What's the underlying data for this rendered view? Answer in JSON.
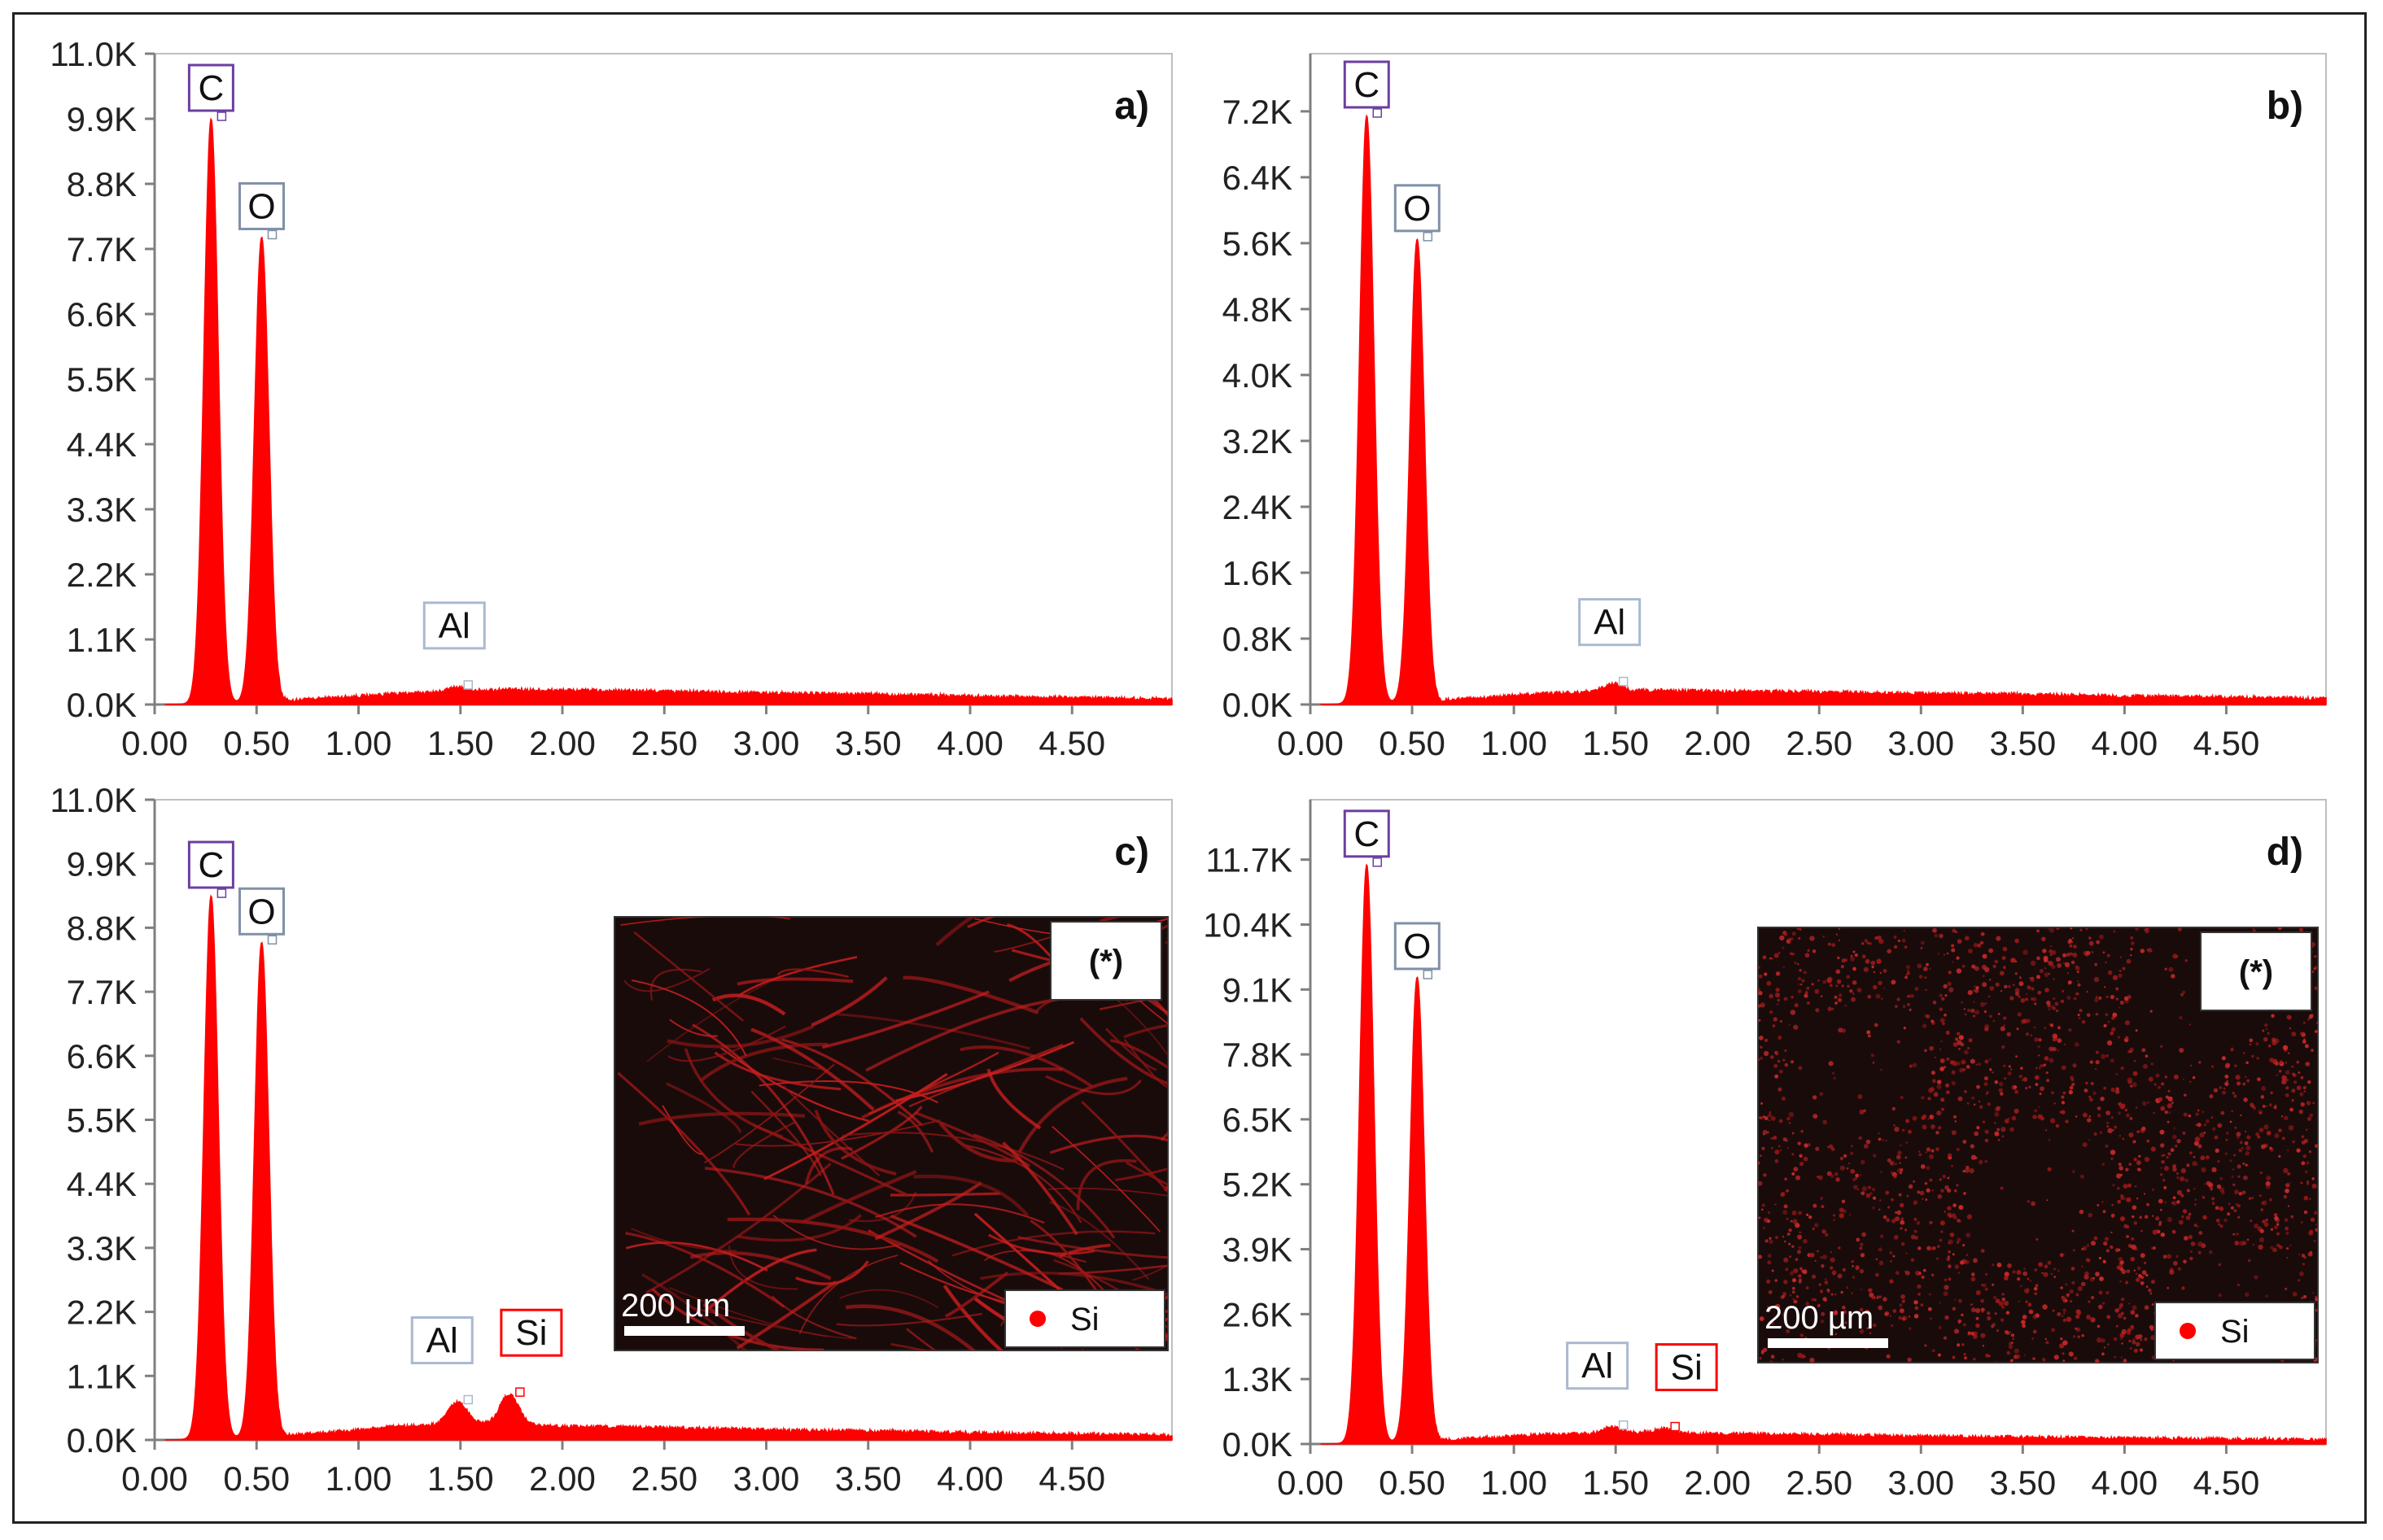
{
  "chart_data": [
    {
      "type": "area",
      "panel_label": "a)",
      "x_ticks": [
        "0.00",
        "0.50",
        "1.00",
        "1.50",
        "2.00",
        "2.50",
        "3.00",
        "3.50",
        "4.00",
        "4.50"
      ],
      "y_ticks": [
        "0.0K",
        "1.1K",
        "2.2K",
        "3.3K",
        "4.4K",
        "5.5K",
        "6.6K",
        "7.7K",
        "8.8K",
        "9.9K",
        "11.0K"
      ],
      "xlim": [
        0,
        4.99
      ],
      "ylim": [
        0,
        11000
      ],
      "grid": false,
      "peaks": [
        {
          "element": "C",
          "x": 0.277,
          "y": 9900,
          "label_color": "#6b3fa0"
        },
        {
          "element": "O",
          "x": 0.525,
          "y": 7900,
          "label_color": "#8090a8"
        },
        {
          "element": "Al",
          "x": 1.486,
          "y": 290,
          "label_color": "#a9b9d0"
        }
      ],
      "background": [
        [
          0.05,
          0
        ],
        [
          0.6,
          50
        ],
        [
          0.9,
          120
        ],
        [
          1.2,
          180
        ],
        [
          1.7,
          250
        ],
        [
          2.0,
          240
        ],
        [
          2.5,
          220
        ],
        [
          3.0,
          190
        ],
        [
          3.5,
          170
        ],
        [
          4.0,
          140
        ],
        [
          4.5,
          110
        ],
        [
          4.99,
          90
        ]
      ],
      "series_color": "#ff0000"
    },
    {
      "type": "area",
      "panel_label": "b)",
      "x_ticks": [
        "0.00",
        "0.50",
        "1.00",
        "1.50",
        "2.00",
        "2.50",
        "3.00",
        "3.50",
        "4.00",
        "4.50"
      ],
      "y_ticks": [
        "0.0K",
        "0.8K",
        "1.6K",
        "2.4K",
        "3.2K",
        "4.0K",
        "4.8K",
        "5.6K",
        "6.4K",
        "7.2K"
      ],
      "xlim": [
        0,
        4.99
      ],
      "ylim": [
        0,
        7900
      ],
      "grid": false,
      "peaks": [
        {
          "element": "C",
          "x": 0.277,
          "y": 7150,
          "label_color": "#6b3fa0"
        },
        {
          "element": "O",
          "x": 0.525,
          "y": 5650,
          "label_color": "#8090a8"
        },
        {
          "element": "Al",
          "x": 1.486,
          "y": 250,
          "label_color": "#a9b9d0"
        }
      ],
      "background": [
        [
          0.05,
          0
        ],
        [
          0.6,
          40
        ],
        [
          0.9,
          90
        ],
        [
          1.2,
          140
        ],
        [
          1.7,
          170
        ],
        [
          2.0,
          160
        ],
        [
          2.5,
          150
        ],
        [
          3.0,
          130
        ],
        [
          3.5,
          120
        ],
        [
          4.0,
          100
        ],
        [
          4.5,
          85
        ],
        [
          4.99,
          70
        ]
      ],
      "series_color": "#ff0000"
    },
    {
      "type": "area",
      "panel_label": "c)",
      "x_ticks": [
        "0.00",
        "0.50",
        "1.00",
        "1.50",
        "2.00",
        "2.50",
        "3.00",
        "3.50",
        "4.00",
        "4.50"
      ],
      "y_ticks": [
        "0.0K",
        "1.1K",
        "2.2K",
        "3.3K",
        "4.4K",
        "5.5K",
        "6.6K",
        "7.7K",
        "8.8K",
        "9.9K",
        "11.0K"
      ],
      "xlim": [
        0,
        4.99
      ],
      "ylim": [
        0,
        11000
      ],
      "grid": false,
      "peaks": [
        {
          "element": "C",
          "x": 0.277,
          "y": 9350,
          "label_color": "#6b3fa0"
        },
        {
          "element": "O",
          "x": 0.525,
          "y": 8550,
          "label_color": "#8090a8"
        },
        {
          "element": "Al",
          "x": 1.486,
          "y": 650,
          "label_color": "#a9b9d0"
        },
        {
          "element": "Si",
          "x": 1.74,
          "y": 780,
          "label_color": "#ff0000"
        }
      ],
      "background": [
        [
          0.05,
          0
        ],
        [
          0.6,
          60
        ],
        [
          0.9,
          140
        ],
        [
          1.2,
          230
        ],
        [
          1.6,
          280
        ],
        [
          2.0,
          230
        ],
        [
          2.5,
          210
        ],
        [
          3.0,
          170
        ],
        [
          3.5,
          150
        ],
        [
          4.0,
          120
        ],
        [
          4.5,
          100
        ],
        [
          4.99,
          80
        ]
      ],
      "series_color": "#ff0000",
      "inset": {
        "tag": "(*)",
        "legend": "Si",
        "scalebar": "200 µm",
        "texture": "fibrous"
      }
    },
    {
      "type": "area",
      "panel_label": "d)",
      "x_ticks": [
        "0.00",
        "0.50",
        "1.00",
        "1.50",
        "2.00",
        "2.50",
        "3.00",
        "3.50",
        "4.00",
        "4.50"
      ],
      "y_ticks": [
        "0.0K",
        "1.3K",
        "2.6K",
        "3.9K",
        "5.2K",
        "6.5K",
        "7.8K",
        "9.1K",
        "10.4K",
        "11.7K"
      ],
      "xlim": [
        0,
        4.99
      ],
      "ylim": [
        0,
        12900
      ],
      "grid": false,
      "peaks": [
        {
          "element": "C",
          "x": 0.277,
          "y": 11600,
          "label_color": "#6b3fa0"
        },
        {
          "element": "O",
          "x": 0.525,
          "y": 9350,
          "label_color": "#8090a8"
        },
        {
          "element": "Al",
          "x": 1.486,
          "y": 330,
          "label_color": "#a9b9d0"
        },
        {
          "element": "Si",
          "x": 1.74,
          "y": 300,
          "label_color": "#ff0000"
        }
      ],
      "background": [
        [
          0.05,
          0
        ],
        [
          0.6,
          60
        ],
        [
          0.9,
          130
        ],
        [
          1.2,
          190
        ],
        [
          1.6,
          230
        ],
        [
          2.0,
          200
        ],
        [
          2.5,
          180
        ],
        [
          3.0,
          150
        ],
        [
          3.5,
          130
        ],
        [
          4.0,
          110
        ],
        [
          4.5,
          95
        ],
        [
          4.99,
          80
        ]
      ],
      "series_color": "#ff0000",
      "inset": {
        "tag": "(*)",
        "legend": "Si",
        "scalebar": "200 µm",
        "texture": "mesh"
      }
    }
  ]
}
